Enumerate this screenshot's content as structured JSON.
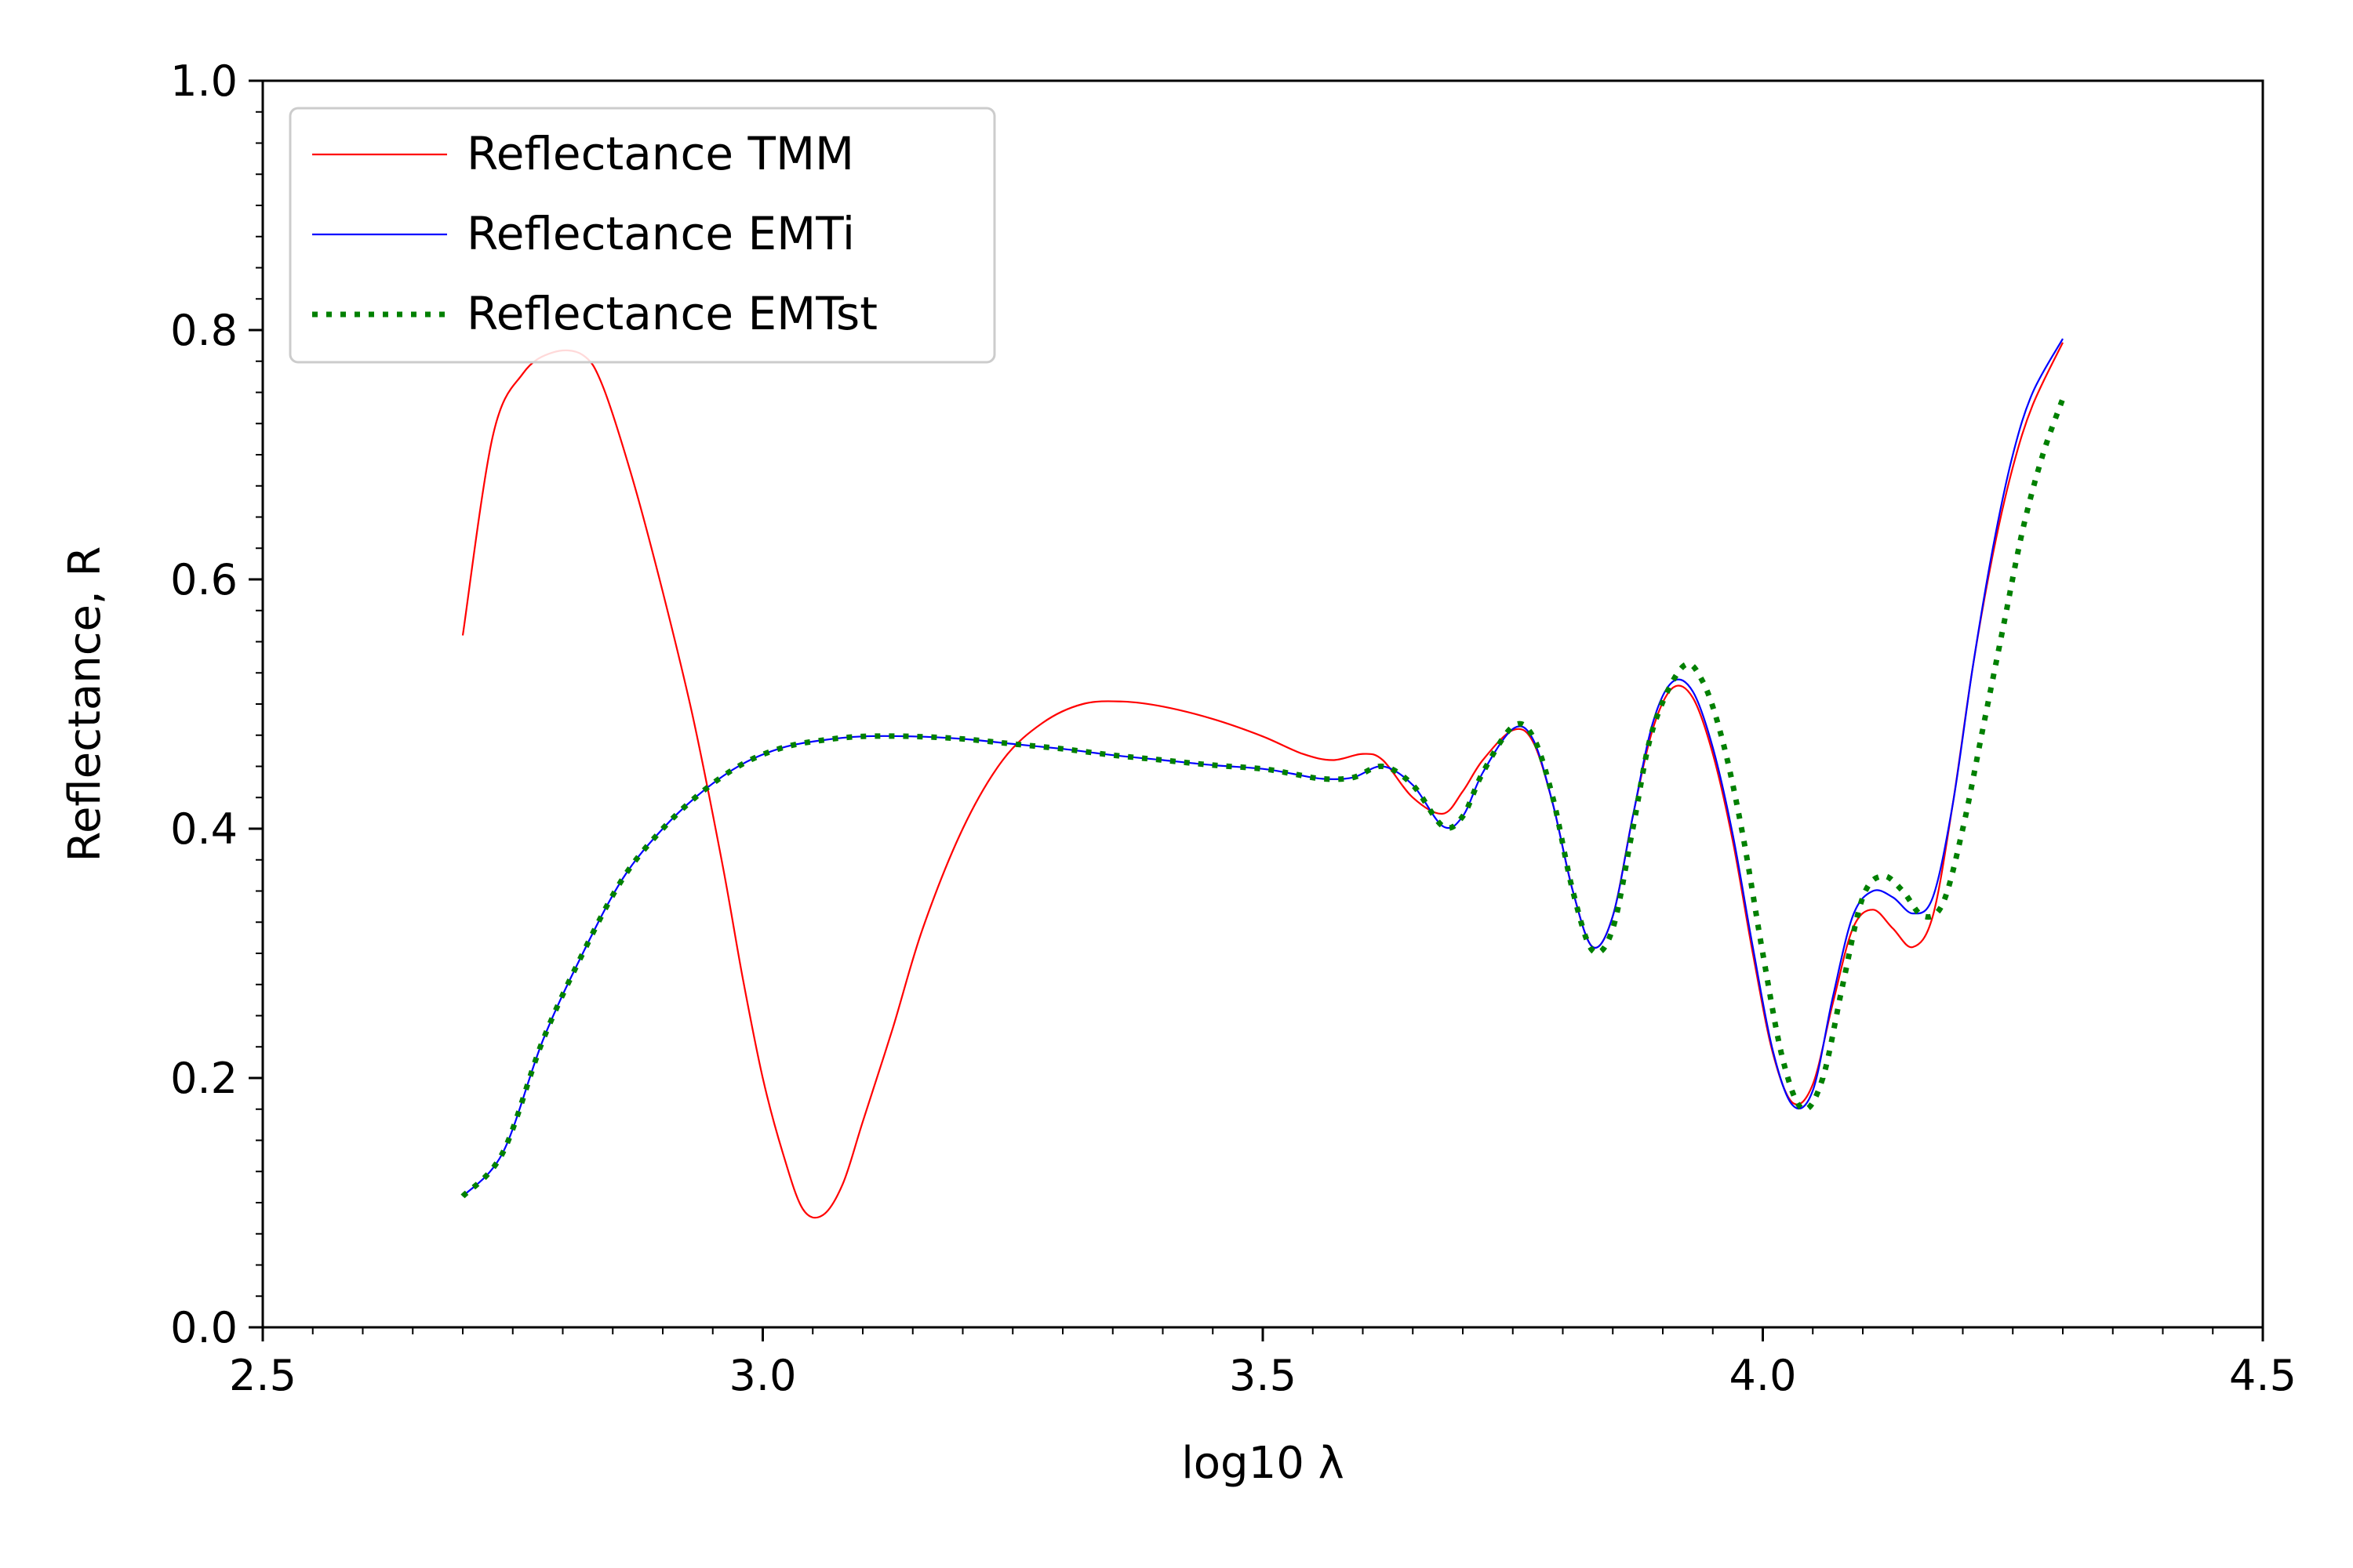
{
  "chart_data": {
    "type": "line",
    "title": "",
    "xlabel": "log10 λ",
    "ylabel": "Reflectance, R",
    "xlim": [
      2.5,
      4.5
    ],
    "ylim": [
      0.0,
      1.0
    ],
    "xticks": [
      2.5,
      3.0,
      3.5,
      4.0,
      4.5
    ],
    "xtick_labels": [
      "2.5",
      "3.0",
      "3.5",
      "4.0",
      "4.5"
    ],
    "yticks": [
      0.0,
      0.2,
      0.4,
      0.6,
      0.8,
      1.0
    ],
    "ytick_labels": [
      "0.0",
      "0.2",
      "0.4",
      "0.6",
      "0.8",
      "1.0"
    ],
    "grid": false,
    "legend_position": "upper-left",
    "series": [
      {
        "name": "Reflectance TMM",
        "color": "#ff0000",
        "style": "solid",
        "x": [
          2.7,
          2.73,
          2.76,
          2.79,
          2.82,
          2.84,
          2.87,
          2.9,
          2.93,
          2.96,
          2.98,
          3.0,
          3.02,
          3.04,
          3.06,
          3.08,
          3.1,
          3.13,
          3.16,
          3.2,
          3.24,
          3.28,
          3.32,
          3.36,
          3.4,
          3.45,
          3.5,
          3.54,
          3.57,
          3.6,
          3.62,
          3.65,
          3.68,
          3.7,
          3.72,
          3.75,
          3.77,
          3.79,
          3.81,
          3.83,
          3.85,
          3.87,
          3.89,
          3.91,
          3.93,
          3.95,
          3.97,
          3.99,
          4.01,
          4.03,
          4.05,
          4.07,
          4.09,
          4.11,
          4.13,
          4.15,
          4.17,
          4.19,
          4.21,
          4.23,
          4.25,
          4.27,
          4.3
        ],
        "y": [
          0.555,
          0.715,
          0.765,
          0.782,
          0.78,
          0.755,
          0.68,
          0.59,
          0.49,
          0.37,
          0.28,
          0.2,
          0.14,
          0.095,
          0.09,
          0.115,
          0.165,
          0.24,
          0.32,
          0.4,
          0.455,
          0.485,
          0.5,
          0.502,
          0.498,
          0.488,
          0.474,
          0.46,
          0.455,
          0.46,
          0.455,
          0.425,
          0.412,
          0.43,
          0.455,
          0.479,
          0.47,
          0.42,
          0.35,
          0.305,
          0.33,
          0.41,
          0.48,
          0.513,
          0.505,
          0.46,
          0.39,
          0.3,
          0.22,
          0.18,
          0.195,
          0.26,
          0.32,
          0.335,
          0.32,
          0.305,
          0.33,
          0.42,
          0.53,
          0.62,
          0.69,
          0.74,
          0.79
        ]
      },
      {
        "name": "Reflectance EMTi",
        "color": "#0000ff",
        "style": "solid",
        "x": [
          2.7,
          2.74,
          2.78,
          2.82,
          2.86,
          2.9,
          2.94,
          2.98,
          3.02,
          3.06,
          3.1,
          3.15,
          3.2,
          3.25,
          3.3,
          3.35,
          3.4,
          3.45,
          3.5,
          3.53,
          3.56,
          3.59,
          3.62,
          3.65,
          3.68,
          3.7,
          3.72,
          3.75,
          3.77,
          3.79,
          3.81,
          3.83,
          3.85,
          3.87,
          3.89,
          3.91,
          3.93,
          3.95,
          3.97,
          3.99,
          4.01,
          4.03,
          4.05,
          4.07,
          4.09,
          4.11,
          4.13,
          4.15,
          4.17,
          4.19,
          4.21,
          4.23,
          4.25,
          4.27,
          4.3
        ],
        "y": [
          0.105,
          0.14,
          0.23,
          0.3,
          0.36,
          0.4,
          0.43,
          0.452,
          0.465,
          0.471,
          0.474,
          0.474,
          0.472,
          0.468,
          0.464,
          0.459,
          0.455,
          0.451,
          0.448,
          0.444,
          0.44,
          0.441,
          0.45,
          0.435,
          0.402,
          0.41,
          0.445,
          0.48,
          0.472,
          0.42,
          0.35,
          0.305,
          0.33,
          0.41,
          0.485,
          0.518,
          0.51,
          0.465,
          0.395,
          0.305,
          0.222,
          0.178,
          0.19,
          0.265,
          0.33,
          0.35,
          0.345,
          0.332,
          0.345,
          0.42,
          0.53,
          0.625,
          0.7,
          0.75,
          0.793
        ]
      },
      {
        "name": "Reflectance EMTst",
        "color": "#008000",
        "style": "dotted",
        "x": [
          2.7,
          2.74,
          2.78,
          2.82,
          2.86,
          2.9,
          2.94,
          2.98,
          3.02,
          3.06,
          3.1,
          3.15,
          3.2,
          3.25,
          3.3,
          3.35,
          3.4,
          3.45,
          3.5,
          3.53,
          3.56,
          3.59,
          3.62,
          3.65,
          3.68,
          3.7,
          3.72,
          3.75,
          3.77,
          3.79,
          3.81,
          3.83,
          3.85,
          3.87,
          3.89,
          3.92,
          3.94,
          3.96,
          3.98,
          4.0,
          4.02,
          4.04,
          4.06,
          4.08,
          4.1,
          4.12,
          4.14,
          4.16,
          4.18,
          4.2,
          4.22,
          4.24,
          4.26,
          4.28,
          4.3
        ],
        "y": [
          0.105,
          0.14,
          0.23,
          0.3,
          0.36,
          0.4,
          0.43,
          0.452,
          0.465,
          0.471,
          0.474,
          0.474,
          0.472,
          0.468,
          0.464,
          0.459,
          0.455,
          0.451,
          0.448,
          0.444,
          0.44,
          0.441,
          0.45,
          0.435,
          0.402,
          0.41,
          0.445,
          0.482,
          0.474,
          0.425,
          0.35,
          0.302,
          0.32,
          0.4,
          0.48,
          0.53,
          0.518,
          0.47,
          0.395,
          0.3,
          0.215,
          0.175,
          0.2,
          0.275,
          0.345,
          0.362,
          0.35,
          0.33,
          0.34,
          0.4,
          0.48,
          0.56,
          0.64,
          0.7,
          0.745
        ]
      }
    ]
  }
}
